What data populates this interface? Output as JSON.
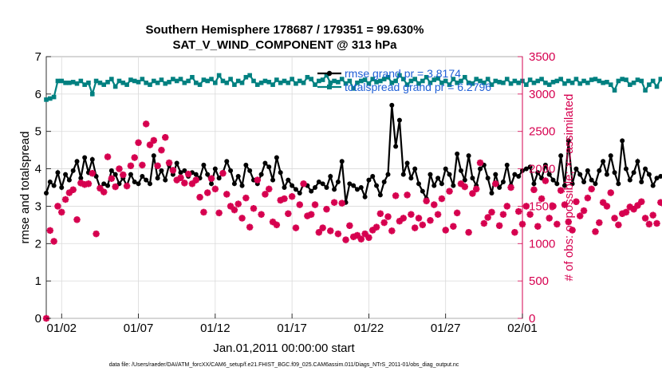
{
  "chart_data": {
    "type": "line",
    "title": "Southern Hemisphere 178687 / 179351 = 99.630%",
    "subtitle": "SAT_V_WIND_COMPONENT @ 313 hPa",
    "xlabel": "Jan.01,2011 00:00:00 start",
    "ylabel_left": "rmse and totalspread",
    "ylabel_right": "# of obs: o=possible; ×=assimilated",
    "footer": "data file: /Users/raeder/DAI/ATM_forcXX/CAM6_setup/f.e21.FHIST_BGC.f09_025.CAM6assim.011/Diags_NTrS_2011-01/obs_diag_output.nc",
    "xlim": [
      0.5,
      31.5
    ],
    "ylim_left": [
      0,
      7
    ],
    "ylim_right": [
      0,
      3500
    ],
    "x_ticks": [
      1.5,
      6.5,
      11.5,
      16.5,
      21.5,
      26.5,
      31.5
    ],
    "x_tick_labels": [
      "01/02",
      "01/07",
      "01/12",
      "01/17",
      "01/22",
      "01/27",
      "02/01"
    ],
    "y_ticks_left": [
      0,
      1,
      2,
      3,
      4,
      5,
      6,
      7
    ],
    "y_ticks_right": [
      0,
      500,
      1000,
      1500,
      2000,
      2500,
      3000,
      3500
    ],
    "colors": {
      "rmse": "#000000",
      "spread": "#008080",
      "obs": "#d6004f",
      "legend_text": "#1f5fd6"
    },
    "legend": {
      "position": "top-right",
      "entries": [
        {
          "label": "rmse  grand pr = 3.8174",
          "series": "rmse"
        },
        {
          "label": "totalspread grand pr = 6.2796",
          "series": "spread"
        }
      ]
    },
    "start_day": 0.5,
    "step_days": 0.25,
    "series": [
      {
        "name": "rmse",
        "axis": "left",
        "marker": "circle",
        "values": [
          3.35,
          3.65,
          3.55,
          3.9,
          3.5,
          3.85,
          3.7,
          3.95,
          4.2,
          3.75,
          4.3,
          3.9,
          4.25,
          3.8,
          3.5,
          3.6,
          3.55,
          3.95,
          3.85,
          3.6,
          3.75,
          3.55,
          3.85,
          3.65,
          3.6,
          3.8,
          3.7,
          3.6,
          4.35,
          3.75,
          3.95,
          3.7,
          4.1,
          3.85,
          4.15,
          3.9,
          3.95,
          3.8,
          3.9,
          3.85,
          3.75,
          4.1,
          3.85,
          3.6,
          4.0,
          3.75,
          3.9,
          4.2,
          3.95,
          3.6,
          3.8,
          3.55,
          4.1,
          3.95,
          3.7,
          3.6,
          3.85,
          4.15,
          4.05,
          3.7,
          4.3,
          3.9,
          3.5,
          3.7,
          3.55,
          3.45,
          3.35,
          3.6,
          3.55,
          3.4,
          3.5,
          3.65,
          3.6,
          3.5,
          3.8,
          3.45,
          3.65,
          4.2,
          3.1,
          3.6,
          3.55,
          3.45,
          3.5,
          3.25,
          3.7,
          3.8,
          3.55,
          3.3,
          3.65,
          3.85,
          5.7,
          4.6,
          5.3,
          3.85,
          4.15,
          3.75,
          4.0,
          3.6,
          3.4,
          3.2,
          3.85,
          3.55,
          3.75,
          3.6,
          4.0,
          3.85,
          3.55,
          4.4,
          3.95,
          3.7,
          4.35,
          3.75,
          3.55,
          4.0,
          4.1,
          3.75,
          3.35,
          3.85,
          3.5,
          3.65,
          4.1,
          3.55,
          3.85,
          3.8,
          3.95,
          4.0,
          4.05,
          3.6,
          3.9,
          3.75,
          4.1,
          3.85,
          3.7,
          3.6,
          4.35,
          3.55,
          4.75,
          3.6,
          4.0,
          3.85,
          3.65,
          3.95,
          3.7,
          3.6,
          3.95,
          4.2,
          3.85,
          4.35,
          3.9,
          3.6,
          4.75,
          4.0,
          3.7,
          3.9,
          4.2,
          3.65,
          4.0,
          3.85,
          3.55,
          3.75,
          3.8,
          3.8,
          3.85
        ]
      },
      {
        "name": "totalspread",
        "axis": "left",
        "marker": "square",
        "values": [
          5.85,
          5.88,
          5.92,
          6.35,
          6.35,
          6.3,
          6.3,
          6.32,
          6.28,
          6.35,
          6.25,
          6.3,
          6.0,
          6.35,
          6.3,
          6.25,
          6.32,
          6.4,
          6.2,
          6.35,
          6.3,
          6.25,
          6.38,
          6.35,
          6.32,
          6.4,
          6.3,
          6.25,
          6.35,
          6.3,
          6.38,
          6.28,
          6.32,
          6.4,
          6.35,
          6.4,
          6.3,
          6.35,
          6.45,
          6.3,
          6.25,
          6.38,
          6.35,
          6.4,
          6.3,
          6.5,
          6.35,
          6.3,
          6.4,
          6.25,
          6.35,
          6.3,
          6.45,
          6.5,
          6.35,
          6.25,
          6.3,
          6.35,
          6.32,
          6.25,
          6.38,
          6.3,
          6.35,
          6.3,
          6.4,
          6.28,
          6.35,
          6.3,
          6.45,
          6.4,
          6.25,
          6.35,
          6.38,
          6.5,
          6.3,
          6.35,
          6.32,
          6.4,
          6.28,
          6.35,
          6.15,
          6.3,
          6.35,
          6.38,
          6.28,
          6.4,
          6.32,
          6.35,
          6.4,
          6.45,
          6.3,
          6.35,
          6.5,
          6.4,
          6.25,
          6.35,
          6.4,
          6.28,
          6.35,
          6.45,
          6.3,
          6.38,
          6.42,
          6.3,
          6.35,
          6.25,
          6.4,
          6.3,
          6.35,
          6.45,
          6.3,
          6.28,
          6.4,
          6.35,
          6.3,
          6.4,
          6.25,
          6.35,
          6.32,
          6.3,
          6.4,
          6.28,
          6.35,
          6.3,
          6.35,
          6.25,
          6.38,
          6.3,
          6.35,
          6.4,
          6.3,
          6.25,
          6.32,
          6.35,
          6.4,
          6.28,
          6.35,
          6.3,
          6.4,
          6.28,
          6.35,
          6.3,
          6.38,
          6.4,
          6.35,
          6.3,
          6.32,
          6.25,
          6.1,
          6.35,
          6.4,
          6.38,
          6.25,
          6.3,
          6.38,
          6.35,
          6.1,
          6.25,
          6.35,
          6.2,
          6.4,
          6.35
        ]
      },
      {
        "name": "# of obs assimilated",
        "axis": "right",
        "marker": "asterisk",
        "values": [
          0,
          1175,
          1030,
          1500,
          1420,
          1590,
          1680,
          1720,
          1320,
          1810,
          1790,
          1800,
          1940,
          1130,
          1740,
          1690,
          2160,
          1870,
          1760,
          2000,
          1920,
          1770,
          2040,
          2150,
          2350,
          2050,
          2600,
          2320,
          2380,
          2040,
          2250,
          2420,
          2080,
          1980,
          1850,
          1880,
          1810,
          1930,
          1800,
          1850,
          1620,
          1420,
          1680,
          1870,
          1730,
          1410,
          1940,
          1660,
          1500,
          1450,
          1530,
          1340,
          1610,
          1220,
          1470,
          1850,
          1390,
          1660,
          1730,
          1290,
          1250,
          1580,
          1600,
          1400,
          1630,
          1210,
          1520,
          1800,
          1370,
          1390,
          1520,
          1150,
          1210,
          1460,
          1170,
          1550,
          1130,
          1540,
          1050,
          1240,
          1090,
          1110,
          1060,
          1130,
          1080,
          1180,
          1220,
          1400,
          1280,
          1360,
          1170,
          1640,
          1300,
          1340,
          1650,
          1390,
          1210,
          1340,
          1250,
          1570,
          1310,
          1520,
          1390,
          1600,
          1180,
          1700,
          1230,
          1410,
          1800,
          1760,
          1150,
          1670,
          1730,
          2080,
          1270,
          1350,
          1420,
          1800,
          1240,
          1390,
          1500,
          1750,
          1150,
          1430,
          1260,
          1500,
          1390,
          1720,
          1230,
          1600,
          1840,
          1340,
          1500,
          1260,
          1710,
          1520,
          1290,
          1180,
          1560,
          1370,
          1440,
          1610,
          1730,
          1160,
          1280,
          1550,
          1500,
          1680,
          1340,
          1250,
          1400,
          1420,
          1490,
          1460,
          1510,
          1560,
          1340,
          1260,
          1380,
          1270,
          1550,
          1520
        ]
      }
    ]
  }
}
